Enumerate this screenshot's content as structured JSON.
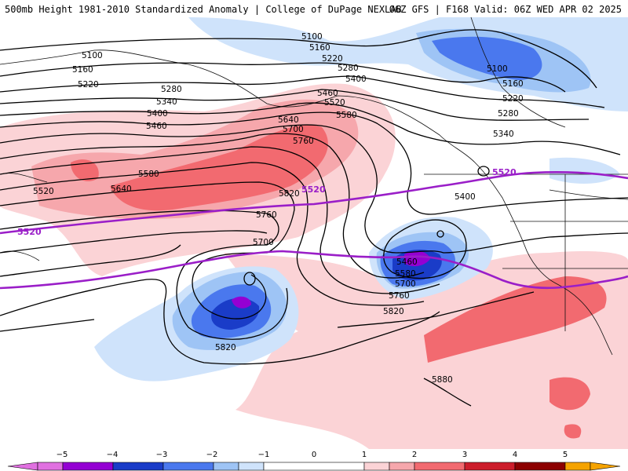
{
  "header": {
    "title_left": "500mb Height 1981-2010 Standardized Anomaly | College of DuPage NEXLAB",
    "title_right": "06Z GFS | F168 Valid: 06Z WED APR 02 2025"
  },
  "map": {
    "height_contours": [
      "5100",
      "5160",
      "5220",
      "5280",
      "5340",
      "5400",
      "5460",
      "5520",
      "5580",
      "5640",
      "5700",
      "5760",
      "5820",
      "5880"
    ],
    "reference_contour": "5520",
    "anomaly_colors": {
      "neg5": "#e070e0",
      "neg4": "#9400d3",
      "neg3": "#1a3cc8",
      "neg2": "#4a78ee",
      "neg1": "#9ec4f5",
      "neg05": "#cfe3fb",
      "pos05": "#fbd3d6",
      "pos1": "#f6a7ac",
      "pos2": "#f26a70",
      "pos3": "#cc1d2b",
      "pos4": "#8c0000",
      "pos5": "#f5a300"
    },
    "reference_line_color": "#9a1ec8"
  },
  "colorbar": {
    "ticks": [
      "−5",
      "−4",
      "−3",
      "−2",
      "−1",
      "0",
      "1",
      "2",
      "3",
      "4",
      "5"
    ]
  }
}
